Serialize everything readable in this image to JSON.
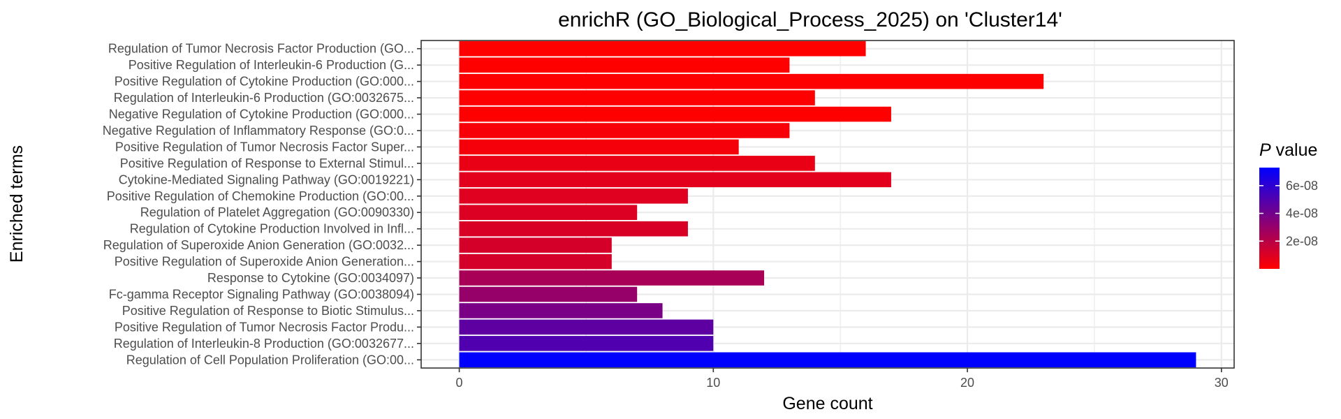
{
  "chart_data": {
    "type": "bar",
    "orientation": "horizontal",
    "title": "enrichR (GO_Biological_Process_2025) on 'Cluster14'",
    "xlabel": "Gene count",
    "ylabel": "Enriched terms",
    "xlim": [
      -1.5,
      30.5
    ],
    "xticks": [
      0,
      10,
      20,
      30
    ],
    "grid": true,
    "categories": [
      "Regulation of Tumor Necrosis Factor Production (GO...",
      "Positive Regulation of Interleukin-6 Production (G...",
      "Positive Regulation of Cytokine Production (GO:000...",
      "Regulation of Interleukin-6 Production (GO:0032675...",
      "Negative Regulation of Cytokine Production (GO:000...",
      "Negative Regulation of Inflammatory Response (GO:0...",
      "Positive Regulation of Tumor Necrosis Factor Super...",
      "Positive Regulation of Response to External Stimul...",
      "Cytokine-Mediated Signaling Pathway (GO:0019221)",
      "Positive Regulation of Chemokine Production (GO:00...",
      "Regulation of Platelet Aggregation (GO:0090330)",
      "Regulation of Cytokine Production Involved in Infl...",
      "Regulation of Superoxide Anion Generation (GO:0032...",
      "Positive Regulation of Superoxide Anion Generation...",
      "Response to Cytokine (GO:0034097)",
      "Fc-gamma Receptor Signaling Pathway (GO:0038094)",
      "Positive Regulation of Response to Biotic Stimulus...",
      "Positive Regulation of Tumor Necrosis Factor Produ...",
      "Regulation of Interleukin-8 Production (GO:0032677...",
      "Regulation of Cell Population Proliferation (GO:00..."
    ],
    "values": [
      16,
      13,
      23,
      14,
      17,
      13,
      11,
      14,
      17,
      9,
      7,
      9,
      6,
      6,
      12,
      7,
      8,
      10,
      10,
      29
    ],
    "p_values": [
      1e-10,
      1e-10,
      1e-10,
      1e-10,
      1e-10,
      2e-09,
      3e-09,
      6e-09,
      8e-09,
      9e-09,
      1e-08,
      1.1e-08,
      1.2e-08,
      1.2e-08,
      2.5e-08,
      3e-08,
      3.8e-08,
      4.6e-08,
      5e-08,
      7.3e-08
    ],
    "legend": {
      "title_italic": "P",
      "title_rest": " value",
      "position": "right",
      "min": 0,
      "max": 7.3e-08,
      "low_color": "#ff0000",
      "high_color": "#0000ff",
      "ticks": [
        {
          "value": 2e-08,
          "label": "2e-08"
        },
        {
          "value": 4e-08,
          "label": "4e-08"
        },
        {
          "value": 6e-08,
          "label": "6e-08"
        }
      ]
    }
  }
}
